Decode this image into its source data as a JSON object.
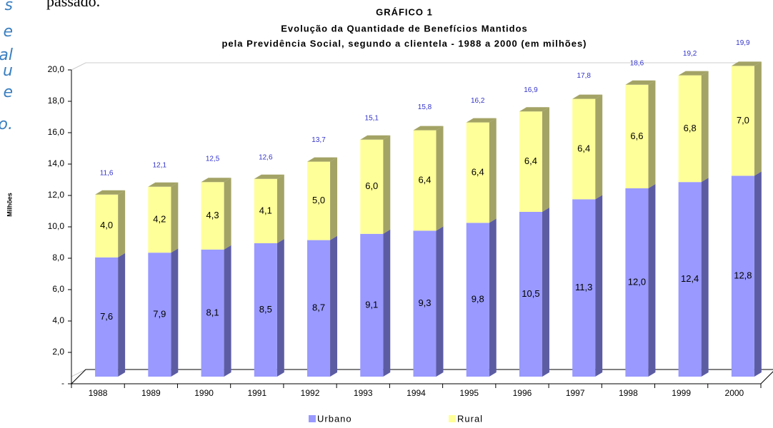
{
  "chart_data": {
    "type": "stacked-bar-3d",
    "title": "GRÁFICO 1",
    "subtitle": [
      "Evolução da Quantidade de Benefícios Mantidos",
      "pela Previdência Social, segundo a clientela - 1988 a 2000 (em milhões)"
    ],
    "y_label": "Milhões",
    "categories": [
      "1988",
      "1989",
      "1990",
      "1991",
      "1992",
      "1993",
      "1994",
      "1995",
      "1996",
      "1997",
      "1998",
      "1999",
      "2000"
    ],
    "series": [
      {
        "name": "Urbano",
        "color": "#9999ff",
        "side_color": "#5c5ca3",
        "values": [
          7.6,
          7.9,
          8.1,
          8.5,
          8.7,
          9.1,
          9.3,
          9.8,
          10.5,
          11.3,
          12.0,
          12.4,
          12.8
        ],
        "value_labels": [
          "7,6",
          "7,9",
          "8,1",
          "8,5",
          "8,7",
          "9,1",
          "9,3",
          "9,8",
          "10,5",
          "11,3",
          "12,0",
          "12,4",
          "12,8"
        ]
      },
      {
        "name": "Rural",
        "color": "#ffff99",
        "side_color": "#a3a366",
        "values": [
          4.0,
          4.2,
          4.3,
          4.1,
          5.0,
          6.0,
          6.4,
          6.4,
          6.4,
          6.4,
          6.6,
          6.8,
          7.0
        ],
        "value_labels": [
          "4,0",
          "4,2",
          "4,3",
          "4,1",
          "5,0",
          "6,0",
          "6,4",
          "6,4",
          "6,4",
          "6,4",
          "6,6",
          "6,8",
          "7,0"
        ]
      }
    ],
    "totals": [
      11.6,
      12.1,
      12.5,
      12.6,
      13.7,
      15.1,
      15.8,
      16.2,
      16.9,
      17.8,
      18.6,
      19.2,
      19.9
    ],
    "total_labels": [
      "11,6",
      "12,1",
      "12,5",
      "12,6",
      "13,7",
      "15,1",
      "15,8",
      "16,2",
      "16,9",
      "17,8",
      "18,6",
      "19,2",
      "19,9"
    ],
    "total_color": "#3333cc",
    "ylim": [
      0,
      20
    ],
    "yticks": [
      {
        "value": 0,
        "label": "-"
      },
      {
        "value": 2,
        "label": "2,0"
      },
      {
        "value": 4,
        "label": "4,0"
      },
      {
        "value": 6,
        "label": "6,0"
      },
      {
        "value": 8,
        "label": "8,0"
      },
      {
        "value": 10,
        "label": "10,0"
      },
      {
        "value": 12,
        "label": "12,0"
      },
      {
        "value": 14,
        "label": "14,0"
      },
      {
        "value": 16,
        "label": "16,0"
      },
      {
        "value": 18,
        "label": "18,0"
      },
      {
        "value": 20,
        "label": "20,0"
      }
    ],
    "grid": false,
    "legend": "bottom"
  },
  "side_text": {
    "top": "passado.",
    "margin": [
      "s",
      "e",
      "al",
      "u",
      "e",
      "o."
    ]
  }
}
